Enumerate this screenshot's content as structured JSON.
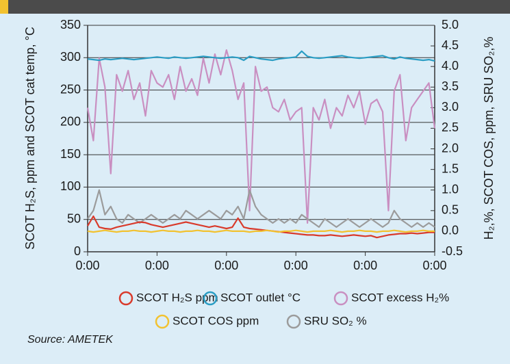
{
  "chart_data": {
    "type": "line",
    "ylabel": "SCOT H₂S, ppm and SCOT cat temp, °C",
    "y2label": "H₂,%, SCOT COS, ppm, SRU SO₂,%",
    "source": "Source: AMETEK",
    "x": [
      0,
      1,
      2,
      3,
      4,
      5,
      6,
      7,
      8,
      9,
      10,
      11,
      12,
      13,
      14,
      15,
      16,
      17,
      18,
      19,
      20,
      21,
      22,
      23,
      24,
      25,
      26,
      27,
      28,
      29,
      30,
      31,
      32,
      33,
      34,
      35,
      36,
      37,
      38,
      39,
      40,
      41,
      42,
      43,
      44,
      45,
      46,
      47,
      48,
      49,
      50,
      51,
      52,
      53,
      54,
      55,
      56,
      57,
      58,
      59,
      60
    ],
    "xlim": [
      0,
      60
    ],
    "xticks": [
      {
        "value": 0,
        "label": "0:00"
      },
      {
        "value": 12,
        "label": "0:00"
      },
      {
        "value": 24,
        "label": "0:00"
      },
      {
        "value": 36,
        "label": "0:00"
      },
      {
        "value": 48,
        "label": "0:00"
      },
      {
        "value": 60,
        "label": "0:00"
      }
    ],
    "ylim": [
      0,
      350
    ],
    "yticks": [
      0,
      50,
      100,
      150,
      200,
      250,
      300,
      350
    ],
    "y2lim": [
      -0.5,
      5.0
    ],
    "y2ticks": [
      {
        "value": -0.5,
        "label": "-0.5"
      },
      {
        "value": 0,
        "label": "0.0"
      },
      0.5,
      {
        "value": 1,
        "label": "1.0"
      },
      1.5,
      {
        "value": 2,
        "label": "2.0"
      },
      2.5,
      {
        "value": 3,
        "label": "3.0"
      },
      3.5,
      {
        "value": 4,
        "label": "4.0"
      },
      4.5,
      {
        "value": 5,
        "label": "5.0"
      }
    ],
    "grid": true,
    "series": [
      {
        "name": "SCOT H₂S ppm",
        "color": "#d93a2b",
        "axis": "y",
        "values": [
          40,
          55,
          38,
          36,
          35,
          38,
          40,
          42,
          44,
          46,
          45,
          42,
          40,
          38,
          40,
          42,
          44,
          46,
          44,
          42,
          40,
          38,
          40,
          38,
          36,
          38,
          52,
          38,
          36,
          35,
          34,
          33,
          32,
          31,
          30,
          29,
          28,
          27,
          26,
          26,
          25,
          25,
          26,
          25,
          24,
          25,
          26,
          25,
          24,
          25,
          22,
          24,
          26,
          27,
          28,
          28,
          29,
          28,
          29,
          30,
          30
        ]
      },
      {
        "name": "SCOT outlet °C",
        "color": "#2a9dc4",
        "axis": "y",
        "values": [
          298,
          297,
          296,
          298,
          297,
          298,
          299,
          298,
          297,
          298,
          299,
          300,
          301,
          300,
          299,
          301,
          300,
          299,
          300,
          301,
          302,
          301,
          300,
          299,
          300,
          301,
          300,
          296,
          302,
          300,
          298,
          297,
          296,
          298,
          299,
          300,
          301,
          310,
          302,
          300,
          299,
          300,
          301,
          302,
          303,
          301,
          300,
          299,
          300,
          301,
          302,
          303,
          300,
          298,
          301,
          299,
          298,
          297,
          296,
          297,
          295
        ]
      },
      {
        "name": "SCOT excess H₂%",
        "color": "#c98fc1",
        "axis": "y2",
        "values": [
          3.0,
          2.2,
          4.2,
          3.5,
          1.4,
          3.8,
          3.4,
          3.9,
          3.2,
          3.6,
          2.8,
          3.9,
          3.6,
          3.5,
          3.8,
          3.2,
          4.0,
          3.4,
          3.7,
          3.3,
          4.2,
          3.6,
          4.3,
          3.8,
          4.4,
          3.9,
          3.2,
          3.6,
          0.5,
          4.0,
          3.4,
          3.5,
          3.0,
          2.9,
          3.2,
          2.7,
          2.9,
          3.0,
          0.2,
          3.0,
          2.7,
          3.2,
          2.5,
          3.0,
          2.8,
          3.3,
          3.0,
          3.4,
          2.6,
          3.1,
          3.2,
          2.9,
          0.5,
          3.4,
          3.8,
          2.2,
          3.0,
          3.2,
          3.4,
          3.6,
          2.5
        ]
      },
      {
        "name": "SCOT COS ppm",
        "color": "#f2c230",
        "axis": "y2",
        "values": [
          0.0,
          -0.02,
          0.0,
          0.02,
          0.0,
          -0.02,
          0.0,
          0.0,
          0.02,
          0.0,
          0.0,
          -0.02,
          0.0,
          0.02,
          0.0,
          0.0,
          -0.02,
          0.0,
          0.0,
          0.02,
          0.0,
          0.0,
          -0.02,
          0.0,
          0.02,
          0.0,
          0.0,
          0.0,
          -0.02,
          0.0,
          0.0,
          0.02,
          0.0,
          -0.02,
          0.0,
          0.0,
          0.02,
          0.0,
          -0.02,
          0.0,
          0.0,
          0.0,
          0.02,
          0.0,
          -0.02,
          0.0,
          0.0,
          0.02,
          0.0,
          0.0,
          -0.02,
          0.0,
          0.0,
          0.02,
          0.0,
          -0.02,
          0.0,
          0.0,
          0.02,
          0.0,
          0.0
        ]
      },
      {
        "name": "SRU SO₂ %",
        "color": "#9b9b9b",
        "axis": "y2",
        "values": [
          0.3,
          0.5,
          1.0,
          0.4,
          0.6,
          0.3,
          0.2,
          0.4,
          0.3,
          0.2,
          0.3,
          0.4,
          0.3,
          0.2,
          0.3,
          0.4,
          0.3,
          0.5,
          0.4,
          0.3,
          0.4,
          0.5,
          0.4,
          0.3,
          0.5,
          0.4,
          0.6,
          0.3,
          1.0,
          0.6,
          0.4,
          0.3,
          0.2,
          0.3,
          0.2,
          0.3,
          0.2,
          0.4,
          0.3,
          0.2,
          0.1,
          0.3,
          0.2,
          0.1,
          0.2,
          0.3,
          0.2,
          0.1,
          0.2,
          0.3,
          0.2,
          0.1,
          0.2,
          0.5,
          0.3,
          0.2,
          0.1,
          0.2,
          0.1,
          0.2,
          0.1
        ]
      }
    ]
  }
}
